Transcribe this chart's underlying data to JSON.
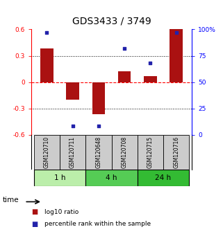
{
  "title": "GDS3433 / 3749",
  "samples": [
    "GSM120710",
    "GSM120711",
    "GSM120648",
    "GSM120708",
    "GSM120715",
    "GSM120716"
  ],
  "log10_ratio": [
    0.38,
    -0.2,
    -0.37,
    0.12,
    0.07,
    0.6
  ],
  "percentile_rank": [
    97,
    8,
    8,
    82,
    68,
    97
  ],
  "ylim_left": [
    -0.6,
    0.6
  ],
  "ylim_right": [
    0,
    100
  ],
  "yticks_left": [
    -0.6,
    -0.3,
    0.0,
    0.3,
    0.6
  ],
  "yticks_right": [
    0,
    25,
    50,
    75,
    100
  ],
  "ytick_labels_right": [
    "0",
    "25",
    "50",
    "75",
    "100%"
  ],
  "bar_color": "#aa1111",
  "dot_color": "#2222aa",
  "bar_width": 0.5,
  "groups": [
    {
      "label": "1 h",
      "start": 0,
      "end": 2,
      "color": "#bbeeaa"
    },
    {
      "label": "4 h",
      "start": 2,
      "end": 4,
      "color": "#55cc55"
    },
    {
      "label": "24 h",
      "start": 4,
      "end": 6,
      "color": "#33bb33"
    }
  ],
  "sample_box_color": "#cccccc",
  "time_label": "time",
  "legend_bar_label": "log10 ratio",
  "legend_dot_label": "percentile rank within the sample",
  "title_fontsize": 10,
  "tick_fontsize": 6.5,
  "sample_fontsize": 5.5
}
